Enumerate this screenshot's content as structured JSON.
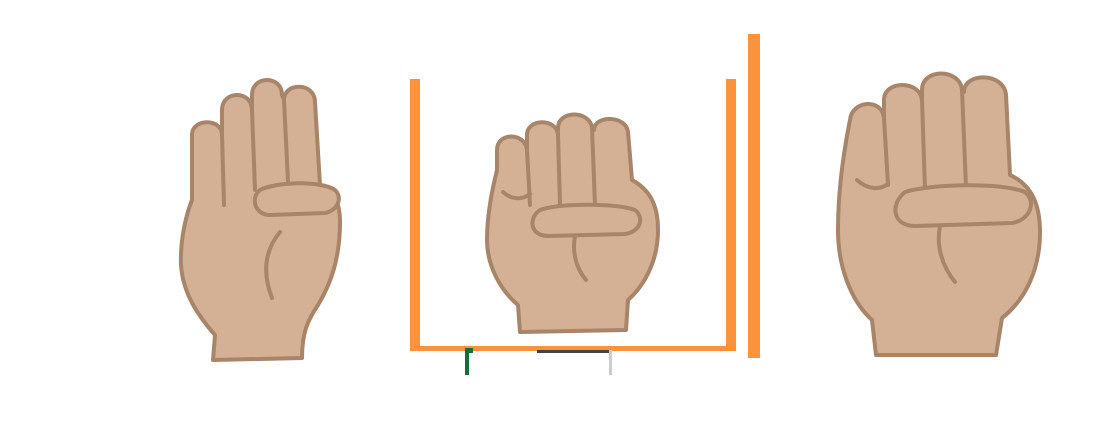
{
  "colors": {
    "background": "#ffffff",
    "skin": "#d4b094",
    "skin_outline": "#a88468",
    "frame_orange": "#fb923c",
    "marker_green": "#1a6b3a",
    "marker_gray": "#cccccc",
    "marker_dark": "#444444"
  },
  "icons": {
    "left": "open-hand-thumb-folded-icon",
    "middle": "closed-fist-icon",
    "right": "closed-fist-large-icon"
  }
}
